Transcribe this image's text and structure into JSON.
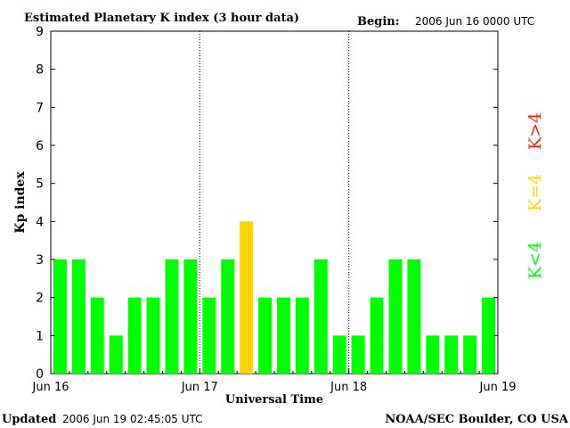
{
  "header": {
    "title": "Estimated Planetary K index (3 hour data)",
    "begin_label": "Begin:",
    "begin_value": "2006 Jun 16 0000 UTC"
  },
  "footer": {
    "updated_label": "Updated",
    "updated_value": "2006 Jun 19 02:45:05 UTC",
    "source": "NOAA/SEC Boulder, CO USA"
  },
  "legend": {
    "high": "K>4",
    "equal": "K=4",
    "low": "K<4"
  },
  "colors": {
    "low": "#00ff00",
    "equal": "#ffd400",
    "high": "#ff2000",
    "axis": "#000000"
  },
  "chart_data": {
    "type": "bar",
    "title": "Estimated Planetary K index (3 hour data)",
    "xlabel": "Universal Time",
    "ylabel": "Kp index",
    "ylim": [
      0,
      9
    ],
    "yticks": [
      "0",
      "1",
      "2",
      "3",
      "4",
      "5",
      "6",
      "7",
      "8",
      "9"
    ],
    "xticks": [
      "Jun 16",
      "Jun 17",
      "Jun 18",
      "Jun 19"
    ],
    "day_dividers": [
      "Jun 17",
      "Jun 18"
    ],
    "bars_per_day": 8,
    "values": [
      3,
      3,
      2,
      1,
      2,
      2,
      3,
      3,
      2,
      3,
      4,
      2,
      2,
      2,
      3,
      1,
      1,
      2,
      3,
      3,
      1,
      1,
      1,
      2
    ]
  }
}
